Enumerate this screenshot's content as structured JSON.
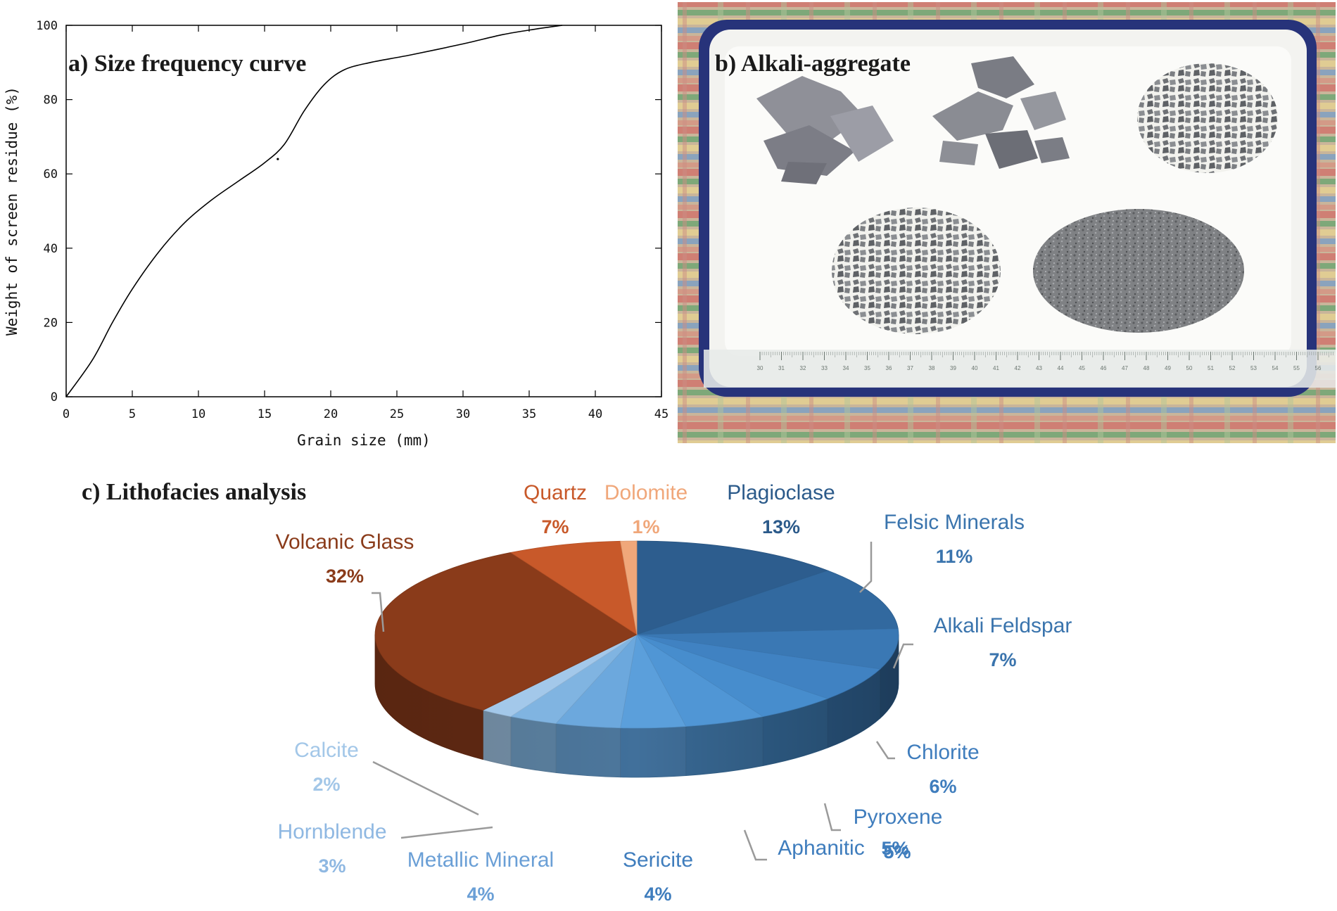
{
  "panels": {
    "a_title": "a) Size frequency curve",
    "b_title": "b) Alkali-aggregate",
    "c_title": "c) Lithofacies analysis"
  },
  "photo": {
    "ruler_ticks": [
      "30",
      "31",
      "32",
      "33",
      "34",
      "35",
      "36",
      "37",
      "38",
      "39",
      "40",
      "41",
      "42",
      "43",
      "44",
      "45",
      "46",
      "47",
      "48",
      "49",
      "50",
      "51",
      "52",
      "53",
      "54",
      "55",
      "56"
    ]
  },
  "chart_data": [
    {
      "type": "line",
      "title": "a) Size frequency curve",
      "xlabel": "Grain size (mm)",
      "ylabel": "Weight of screen residue (%)",
      "xlim": [
        0,
        45
      ],
      "ylim": [
        0,
        100
      ],
      "xticks": [
        0,
        5,
        10,
        15,
        20,
        25,
        30,
        35,
        40,
        45
      ],
      "yticks": [
        0,
        20,
        40,
        60,
        80,
        100
      ],
      "grid": false,
      "series": [
        {
          "x": [
            0,
            2,
            3.5,
            5,
            7,
            9,
            11,
            13,
            15,
            16.5,
            18,
            19.5,
            21,
            23,
            26,
            30,
            33,
            35.5,
            37.5
          ],
          "y": [
            0,
            10,
            20,
            29,
            39,
            47,
            53,
            58,
            63,
            68,
            77,
            84,
            88,
            90,
            92,
            95,
            97.5,
            99,
            100
          ]
        }
      ],
      "annotation_point": {
        "x": 16,
        "y": 64
      }
    },
    {
      "type": "pie",
      "title": "c) Lithofacies analysis",
      "legend": "none",
      "slices": [
        {
          "label": "Plagioclase",
          "value": 13,
          "pct_label": "13%",
          "color": "#2d5d8e"
        },
        {
          "label": "Felsic Minerals",
          "value": 11,
          "pct_label": "11%",
          "color": "#32699f"
        },
        {
          "label": "Alkali Feldspar",
          "value": 7,
          "pct_label": "7%",
          "color": "#3a78b4"
        },
        {
          "label": "Chlorite",
          "value": 6,
          "pct_label": "6%",
          "color": "#4082c2"
        },
        {
          "label": "Pyroxene",
          "value": 5,
          "pct_label": "5%",
          "color": "#478dcd"
        },
        {
          "label": "Aphanitic",
          "value": 5,
          "pct_label": "5%",
          "color": "#5096d5"
        },
        {
          "label": "Sericite",
          "value": 4,
          "pct_label": "4%",
          "color": "#5b9fdb"
        },
        {
          "label": "Metallic Mineral",
          "value": 4,
          "pct_label": "4%",
          "color": "#6ca8dd"
        },
        {
          "label": "Hornblende",
          "value": 3,
          "pct_label": "3%",
          "color": "#80b4e1"
        },
        {
          "label": "Calcite",
          "value": 2,
          "pct_label": "2%",
          "color": "#a3c8ea"
        },
        {
          "label": "Volcanic Glass",
          "value": 32,
          "pct_label": "32%",
          "color": "#8a3b1a"
        },
        {
          "label": "Quartz",
          "value": 7,
          "pct_label": "7%",
          "color": "#c8592a"
        },
        {
          "label": "Dolomite",
          "value": 1,
          "pct_label": "1%",
          "color": "#f0a77a"
        }
      ]
    }
  ]
}
